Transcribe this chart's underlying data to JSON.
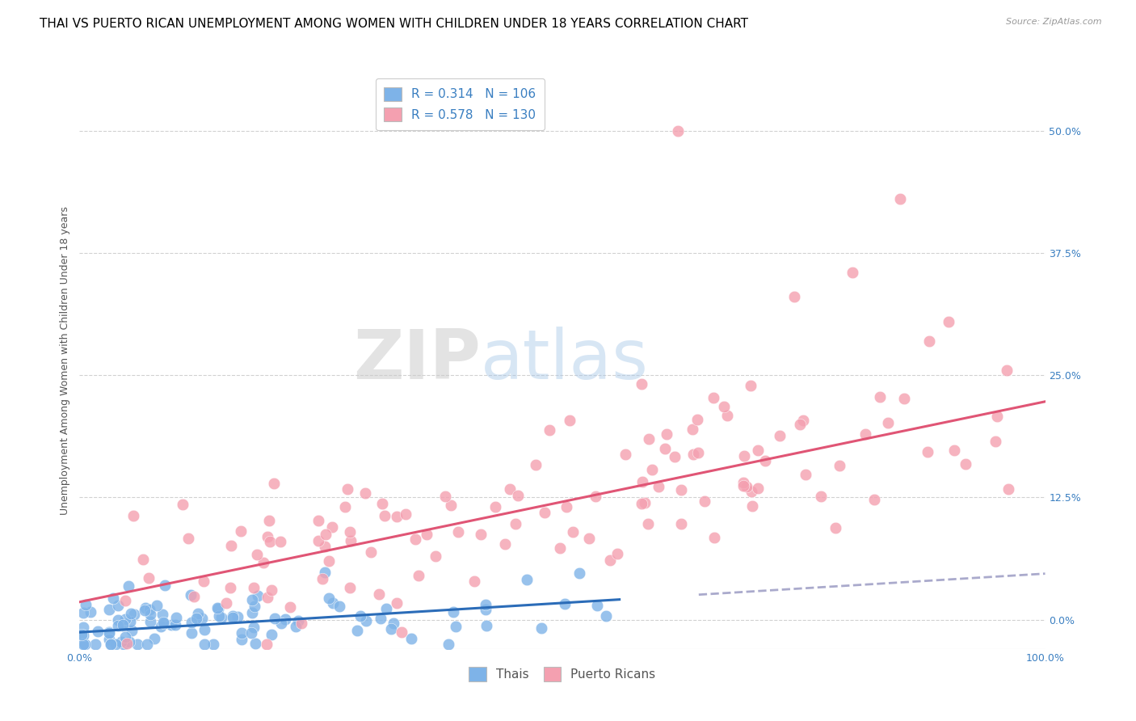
{
  "title": "THAI VS PUERTO RICAN UNEMPLOYMENT AMONG WOMEN WITH CHILDREN UNDER 18 YEARS CORRELATION CHART",
  "source": "Source: ZipAtlas.com",
  "ylabel": "Unemployment Among Women with Children Under 18 years",
  "xlabel_ticks": [
    "0.0%",
    "100.0%"
  ],
  "ytick_labels": [
    "0.0%",
    "12.5%",
    "25.0%",
    "37.5%",
    "50.0%"
  ],
  "ytick_values": [
    0.0,
    0.125,
    0.25,
    0.375,
    0.5
  ],
  "xlim": [
    0.0,
    1.0
  ],
  "ylim": [
    -0.03,
    0.56
  ],
  "thai_R": 0.314,
  "thai_N": 106,
  "pr_R": 0.578,
  "pr_N": 130,
  "thai_color": "#7eb3e8",
  "pr_color": "#f4a0b0",
  "thai_line_color": "#2b6cb8",
  "pr_line_color": "#e05575",
  "thai_dash_color": "#aaaacc",
  "background_color": "#ffffff",
  "grid_color": "#cccccc",
  "watermark_zip": "ZIP",
  "watermark_atlas": "atlas",
  "legend_thai": "Thais",
  "legend_pr": "Puerto Ricans",
  "title_fontsize": 11,
  "axis_label_fontsize": 9,
  "tick_fontsize": 9,
  "legend_fontsize": 10
}
